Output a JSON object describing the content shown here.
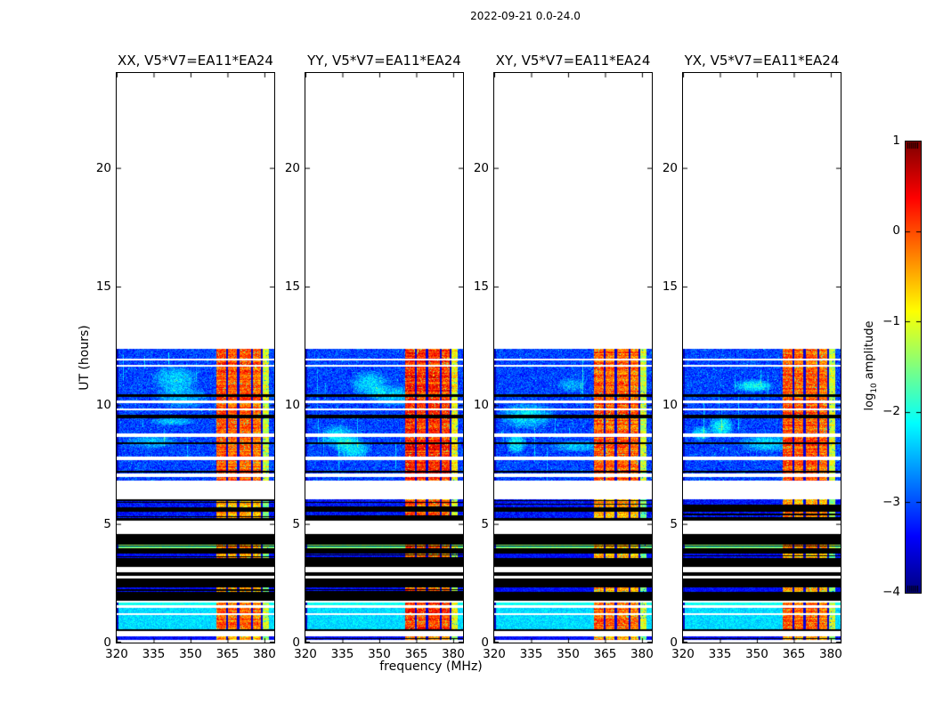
{
  "figure_title": "2022-09-21 0.0-24.0",
  "chart_data": {
    "type": "heatmap",
    "title": "2022-09-21 0.0-24.0",
    "xlabel": "frequency (MHz)",
    "ylabel": "UT (hours)",
    "x_range": [
      320,
      384
    ],
    "y_range": [
      0,
      24
    ],
    "x_ticks": [
      320,
      335,
      350,
      365,
      380
    ],
    "y_ticks": [
      0,
      5,
      10,
      15,
      20
    ],
    "grid": false,
    "colormap": "jet",
    "background_color": "#ffffff",
    "flagged_color": "#000000",
    "panels": [
      {
        "label": "XX, V5*V7=EA11*EA24",
        "pol": "XX"
      },
      {
        "label": "YY, V5*V7=EA11*EA24",
        "pol": "YY"
      },
      {
        "label": "XY, V5*V7=EA11*EA24",
        "pol": "XY"
      },
      {
        "label": "YX, V5*V7=EA11*EA24",
        "pol": "YX"
      }
    ],
    "colorbar": {
      "label_prefix": "log",
      "label_sub": "10",
      "label_suffix": "amplitude",
      "range": [
        -4,
        1
      ],
      "tick_values": [
        1,
        0,
        -1,
        -2,
        -3,
        -4
      ],
      "tick_labels": [
        "1",
        "0",
        "−1",
        "−2",
        "−3",
        "−4"
      ]
    },
    "data_extent_hours": [
      0.0,
      12.37
    ],
    "rfi_band_mhz": [
      360.2,
      381.6
    ],
    "rfi_columns": [
      {
        "f0": 360.2,
        "f1": 364.3,
        "level": 0.0
      },
      {
        "f0": 364.9,
        "f1": 368.8,
        "level": -0.1
      },
      {
        "f0": 369.6,
        "f1": 374.3,
        "level": -0.05
      },
      {
        "f0": 375.1,
        "f1": 378.4,
        "level": -0.15
      },
      {
        "f0": 379.0,
        "f1": 381.6,
        "level": -1.1
      }
    ],
    "value_levels": {
      "data": {
        "base": -3.05,
        "spread": 0.75,
        "band_adj": 0.0
      },
      "cyan": {
        "base": -2.3,
        "spread": 0.5,
        "band_adj": -0.05
      },
      "cyanline": {
        "base": -2.05,
        "spread": 0.35,
        "band_adj": -0.15
      },
      "dim": {
        "base": -3.35,
        "spread": 0.5,
        "band_adj": -0.45,
        "black_frac": 0.18
      },
      "dirty": {
        "base": -3.3,
        "spread": 0.7,
        "band_adj": -0.3,
        "black_frac": 0.33
      },
      "greenlines": {
        "rows": [
          -1.45,
          null,
          -1.9,
          -1.3,
          null
        ],
        "spread": 0.3,
        "band_adj": -0.35
      }
    },
    "time_segments": [
      [
        0.0,
        0.11,
        "white"
      ],
      [
        0.11,
        0.26,
        "dim"
      ],
      [
        0.26,
        0.49,
        "white"
      ],
      [
        0.49,
        0.56,
        "black"
      ],
      [
        0.56,
        1.15,
        "cyan"
      ],
      [
        1.15,
        1.22,
        "white"
      ],
      [
        1.22,
        1.46,
        "cyan"
      ],
      [
        1.46,
        1.58,
        "white"
      ],
      [
        1.58,
        1.69,
        "cyanline"
      ],
      [
        1.69,
        1.76,
        "white"
      ],
      [
        1.76,
        2.14,
        "black"
      ],
      [
        2.14,
        2.32,
        "dim"
      ],
      [
        2.32,
        2.7,
        "black"
      ],
      [
        2.7,
        2.81,
        "white"
      ],
      [
        2.81,
        2.96,
        "black"
      ],
      [
        2.96,
        3.19,
        "white"
      ],
      [
        3.19,
        3.56,
        "black"
      ],
      [
        3.56,
        3.75,
        "dim"
      ],
      [
        3.75,
        3.94,
        "black"
      ],
      [
        3.94,
        4.13,
        "greenlines"
      ],
      [
        4.13,
        4.58,
        "black"
      ],
      [
        4.58,
        5.14,
        "white"
      ],
      [
        5.14,
        5.25,
        "black"
      ],
      [
        5.25,
        5.51,
        "dirty"
      ],
      [
        5.51,
        5.7,
        "black"
      ],
      [
        5.7,
        6.04,
        "dirty"
      ],
      [
        6.04,
        6.82,
        "white"
      ],
      [
        6.82,
        6.97,
        "data"
      ],
      [
        6.97,
        7.12,
        "white"
      ],
      [
        7.12,
        7.17,
        "data"
      ],
      [
        7.17,
        7.25,
        "black"
      ],
      [
        7.25,
        7.69,
        "data"
      ],
      [
        7.69,
        7.84,
        "white"
      ],
      [
        7.84,
        8.38,
        "data"
      ],
      [
        8.38,
        8.45,
        "black"
      ],
      [
        8.45,
        8.66,
        "data"
      ],
      [
        8.66,
        8.81,
        "white"
      ],
      [
        8.81,
        9.45,
        "data"
      ],
      [
        9.45,
        9.6,
        "black"
      ],
      [
        9.6,
        9.8,
        "data"
      ],
      [
        9.8,
        9.87,
        "white"
      ],
      [
        9.87,
        10.09,
        "data"
      ],
      [
        10.09,
        10.2,
        "white"
      ],
      [
        10.2,
        10.35,
        "data"
      ],
      [
        10.35,
        10.46,
        "black"
      ],
      [
        10.46,
        11.62,
        "data"
      ],
      [
        11.62,
        11.7,
        "white"
      ],
      [
        11.7,
        11.9,
        "data"
      ],
      [
        11.9,
        11.97,
        "white"
      ],
      [
        11.97,
        12.37,
        "data"
      ],
      [
        12.37,
        24.0,
        "white"
      ]
    ]
  }
}
